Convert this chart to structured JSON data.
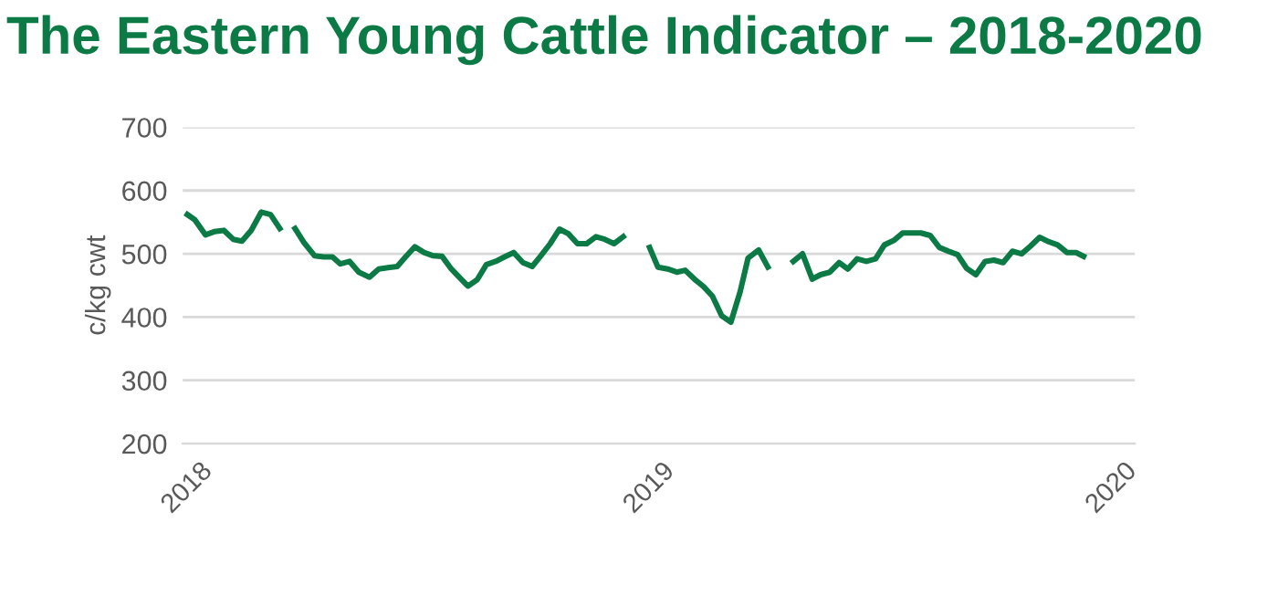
{
  "chart_data": {
    "type": "line",
    "title": "The Eastern Young Cattle Indicator – 2018-2020",
    "ylabel": "c/kg cwt",
    "xlim": [
      2017.99,
      2020.05
    ],
    "xticks": [
      2018,
      2019,
      2020
    ],
    "ylim": [
      200,
      700
    ],
    "yticks": [
      200,
      300,
      400,
      500,
      600,
      700
    ],
    "grid": "y",
    "marker": "none",
    "line_style": "solid",
    "series": [
      {
        "color": "#0b7a45",
        "x": [
          2018.0,
          2018.016,
          2018.039,
          2018.058,
          2018.079,
          2018.099,
          2018.118,
          2018.138,
          2018.16,
          2018.18,
          2018.2,
          2018.216,
          2018.233,
          2018.252,
          2018.275,
          2018.295,
          2018.314,
          2018.331,
          2018.351,
          2018.371,
          2018.394,
          2018.414,
          2018.434,
          2018.454,
          2018.472,
          2018.492,
          2018.512,
          2018.531,
          2018.551,
          2018.571,
          2018.588,
          2018.607,
          2018.627,
          2018.647,
          2018.667,
          2018.686,
          2018.706,
          2018.726,
          2018.746,
          2018.765,
          2018.785,
          2018.805,
          2018.824,
          2018.844,
          2018.864,
          2018.884,
          2018.903,
          2018.923,
          2018.943,
          2018.97,
          2019.0,
          2019.018,
          2019.039,
          2019.059,
          2019.077,
          2019.097,
          2019.117,
          2019.136,
          2019.156,
          2019.176,
          2019.196,
          2019.213,
          2019.236,
          2019.256,
          2019.28,
          2019.311,
          2019.331,
          2019.352,
          2019.37,
          2019.39,
          2019.41,
          2019.429,
          2019.449,
          2019.469,
          2019.489,
          2019.508,
          2019.528,
          2019.548,
          2019.568,
          2019.587,
          2019.607,
          2019.627,
          2019.647,
          2019.666,
          2019.686,
          2019.706,
          2019.726,
          2019.745,
          2019.765,
          2019.785,
          2019.805,
          2019.824,
          2019.844,
          2019.864,
          2019.883,
          2019.903,
          2019.923,
          2019.939
        ],
        "values": [
          562,
          554,
          530,
          535,
          537,
          523,
          520,
          537,
          566,
          562,
          540,
          null,
          540,
          518,
          497,
          495,
          495,
          484,
          488,
          471,
          463,
          476,
          478,
          480,
          495,
          511,
          502,
          497,
          496,
          476,
          463,
          449,
          459,
          483,
          488,
          495,
          502,
          486,
          480,
          497,
          516,
          539,
          532,
          516,
          516,
          527,
          523,
          516,
          527,
          null,
          510,
          479,
          476,
          471,
          474,
          460,
          448,
          433,
          402,
          392,
          440,
          493,
          506,
          479,
          null,
          488,
          500,
          460,
          467,
          471,
          486,
          476,
          492,
          488,
          492,
          514,
          521,
          533,
          533,
          533,
          529,
          510,
          504,
          499,
          477,
          467,
          488,
          490,
          486,
          504,
          500,
          512,
          526,
          519,
          514,
          502,
          502,
          496
        ]
      }
    ]
  }
}
